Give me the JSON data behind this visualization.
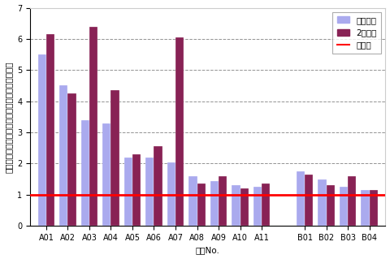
{
  "categories": [
    "A01",
    "A02",
    "A03",
    "A04",
    "A05",
    "A06",
    "A07",
    "A08",
    "A09",
    "A10",
    "A11",
    "",
    "B01",
    "B02",
    "B03",
    "B04"
  ],
  "series1": [
    5.5,
    4.5,
    3.4,
    3.3,
    2.2,
    2.2,
    2.05,
    1.6,
    1.45,
    1.3,
    1.25,
    null,
    1.75,
    1.5,
    1.25,
    1.15
  ],
  "series2": [
    6.15,
    4.25,
    6.4,
    4.35,
    2.3,
    2.55,
    6.05,
    1.35,
    1.6,
    1.2,
    1.35,
    null,
    1.65,
    1.3,
    1.6,
    1.15
  ],
  "color1": "#aaaaee",
  "color2": "#882255",
  "ref_line": 1.0,
  "ref_color": "#ff0000",
  "ylabel": "さら湯を１としたときのすべりやすさ（相対値）",
  "xlabel": "銀柄No.",
  "legend1": "規定の量",
  "legend2": "2倍の量",
  "legend3": "さら湯",
  "ylim": [
    0,
    7
  ],
  "yticks": [
    0,
    1,
    2,
    3,
    4,
    5,
    6,
    7
  ],
  "label_fontsize": 7.5,
  "tick_fontsize": 7,
  "legend_fontsize": 7.5,
  "bar_width": 0.38
}
